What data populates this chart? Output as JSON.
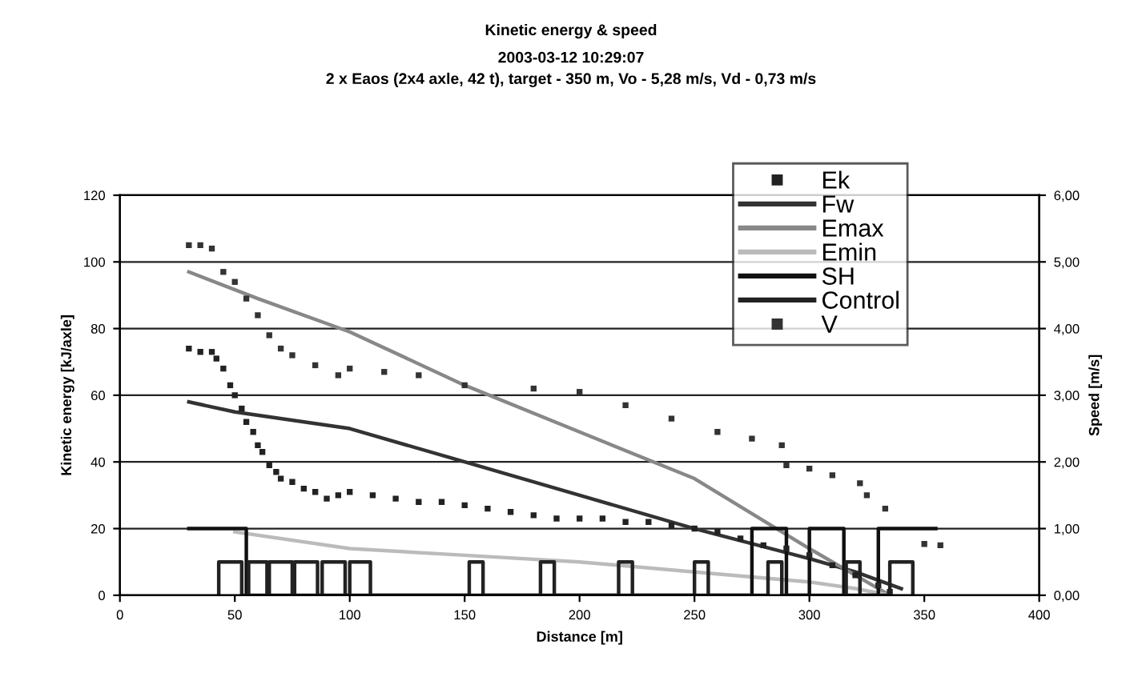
{
  "chart_data": {
    "type": "line",
    "title": "Kinetic energy & speed",
    "subtitle": "2003-03-12 10:29:07\n2 x Eaos (2x4 axle, 42 t), target - 350 m, Vo - 5,28 m/s, Vd - 0,73 m/s",
    "xlabel": "Distance [m]",
    "ylabel": "Kinetic energy [kJ/axle]",
    "y2label": "Speed [m/s]",
    "xlim": [
      0,
      400
    ],
    "xticks": [
      0,
      50,
      100,
      150,
      200,
      250,
      300,
      350,
      400
    ],
    "ylim": [
      0,
      120
    ],
    "yticks": [
      0,
      20,
      40,
      60,
      80,
      100,
      120
    ],
    "y2lim": [
      0,
      6
    ],
    "y2ticks": [
      {
        "value": 0,
        "label": "0,00"
      },
      {
        "value": 1,
        "label": "1,00"
      },
      {
        "value": 2,
        "label": "2,00"
      },
      {
        "value": 3,
        "label": "3,00"
      },
      {
        "value": 4,
        "label": "4,00"
      },
      {
        "value": 5,
        "label": "5,00"
      },
      {
        "value": 6,
        "label": "6,00"
      }
    ],
    "grid": "y",
    "legend": "top right",
    "line_style": "solid",
    "series": [
      {
        "name": "Ek",
        "type": "scatter",
        "marker": "square",
        "color": "#222222",
        "x": [
          30,
          35,
          40,
          42,
          45,
          48,
          50,
          53,
          55,
          58,
          60,
          62,
          65,
          68,
          70,
          75,
          80,
          85,
          90,
          95,
          100,
          110,
          120,
          130,
          140,
          150,
          160,
          170,
          180,
          190,
          200,
          210,
          220,
          230,
          240,
          250,
          260,
          270,
          280,
          290,
          300,
          310,
          320,
          330,
          335
        ],
        "values": [
          74,
          73,
          73,
          71,
          68,
          63,
          60,
          56,
          52,
          49,
          45,
          43,
          39,
          37,
          35,
          34,
          32,
          31,
          29,
          30,
          31,
          30,
          29,
          28,
          28,
          27,
          26,
          25,
          24,
          23,
          23,
          23,
          22,
          22,
          21,
          20,
          19,
          17,
          15,
          14,
          12,
          9,
          6,
          3,
          1
        ]
      },
      {
        "name": "Fw",
        "color": "#333333",
        "x": [
          30,
          50,
          100,
          150,
          200,
          250,
          300,
          320,
          340
        ],
        "values": [
          58,
          55,
          50,
          40,
          30,
          20,
          11,
          7,
          2
        ]
      },
      {
        "name": "Emax",
        "color": "#888888",
        "x": [
          30,
          60,
          100,
          150,
          200,
          250,
          300,
          320,
          335
        ],
        "values": [
          97,
          89,
          79,
          63,
          49,
          35,
          14,
          6,
          0
        ]
      },
      {
        "name": "Emin",
        "color": "#bbbbbb",
        "x": [
          50,
          100,
          150,
          200,
          250,
          300,
          320,
          335
        ],
        "values": [
          19,
          14,
          12,
          10,
          7,
          4,
          2,
          0
        ]
      },
      {
        "name": "SH",
        "color": "#111111",
        "x": [
          30,
          55,
          55,
          275,
          275,
          290,
          290,
          300,
          300,
          315,
          315,
          330,
          330,
          355
        ],
        "values": [
          20,
          20,
          0,
          0,
          20,
          20,
          0,
          0,
          20,
          20,
          0,
          0,
          20,
          20
        ]
      },
      {
        "name": "Control",
        "color": "#222222",
        "x": [
          43,
          43,
          53,
          53,
          56,
          56,
          64,
          64,
          65,
          65,
          75,
          75,
          76,
          76,
          86,
          86,
          88,
          88,
          98,
          98,
          100,
          100,
          109,
          109,
          152,
          152,
          158,
          158,
          183,
          183,
          189,
          189,
          217,
          217,
          223,
          223,
          250,
          250,
          256,
          256,
          282,
          282,
          288,
          288,
          316,
          316,
          322,
          322,
          335,
          335,
          345,
          345
        ],
        "values": [
          0,
          10,
          10,
          0,
          0,
          10,
          10,
          0,
          0,
          10,
          10,
          0,
          0,
          10,
          10,
          0,
          0,
          10,
          10,
          0,
          0,
          10,
          10,
          0,
          0,
          10,
          10,
          0,
          0,
          10,
          10,
          0,
          0,
          10,
          10,
          0,
          0,
          10,
          10,
          0,
          0,
          10,
          10,
          0,
          0,
          10,
          10,
          0,
          0,
          10,
          10,
          0
        ]
      },
      {
        "name": "V",
        "type": "scatter",
        "marker": "square",
        "axis": "y2",
        "color": "#333333",
        "x": [
          30,
          35,
          40,
          45,
          50,
          55,
          60,
          65,
          70,
          75,
          85,
          95,
          100,
          115,
          130,
          150,
          180,
          200,
          220,
          240,
          260,
          275,
          288,
          290,
          300,
          310,
          322,
          325,
          333,
          350,
          357
        ],
        "values": [
          5.25,
          5.25,
          5.2,
          4.85,
          4.7,
          4.45,
          4.2,
          3.9,
          3.7,
          3.6,
          3.45,
          3.3,
          3.4,
          3.35,
          3.3,
          3.15,
          3.1,
          3.05,
          2.85,
          2.65,
          2.45,
          2.35,
          2.25,
          1.95,
          1.9,
          1.8,
          1.68,
          1.5,
          1.3,
          0.77,
          0.75
        ]
      }
    ]
  }
}
